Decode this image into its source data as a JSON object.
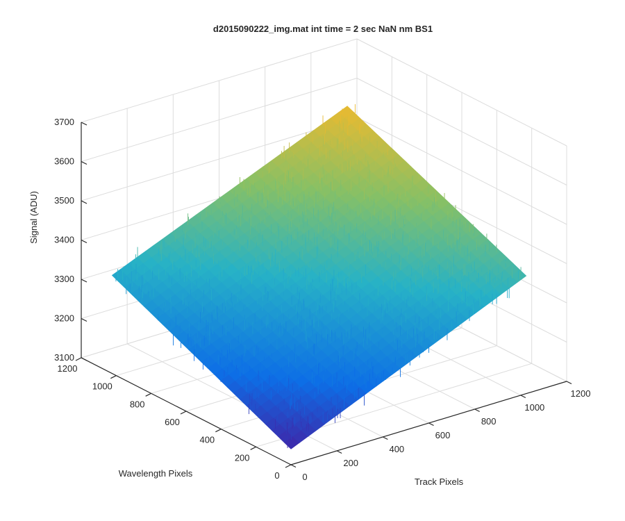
{
  "chart_data": {
    "type": "surface",
    "title": "d2015090222_img.mat int time = 2 sec  NaN nm BS1",
    "xlabel": "Track Pixels",
    "ylabel": "Wavelength Pixels",
    "zlabel": "Signal (ADU)",
    "xlim": [
      0,
      1200
    ],
    "ylim": [
      0,
      1200
    ],
    "zlim": [
      3100,
      3700
    ],
    "x_ticks": [
      "0",
      "200",
      "400",
      "600",
      "800",
      "1000",
      "1200"
    ],
    "y_ticks": [
      "0",
      "200",
      "400",
      "600",
      "800",
      "1000",
      "1200"
    ],
    "z_ticks": [
      "3100",
      "3200",
      "3300",
      "3400",
      "3500",
      "3600",
      "3700"
    ],
    "grid": true,
    "colormap": "parula",
    "surface": {
      "x_range": [
        0,
        1024
      ],
      "y_range": [
        0,
        1024
      ],
      "corner_values": [
        {
          "x": 0,
          "y": 0,
          "z": 3140
        },
        {
          "x": 1024,
          "y": 0,
          "z": 3400
        },
        {
          "x": 1024,
          "y": 1024,
          "z": 3600
        },
        {
          "x": 0,
          "y": 1024,
          "z": 3350
        }
      ],
      "noise_amplitude_adu": 30
    },
    "colors": {
      "low": "#3e26a8",
      "mid_low": "#0d6ee6",
      "mid": "#27b2c6",
      "mid_high": "#86c066",
      "high": "#eaba30"
    }
  }
}
